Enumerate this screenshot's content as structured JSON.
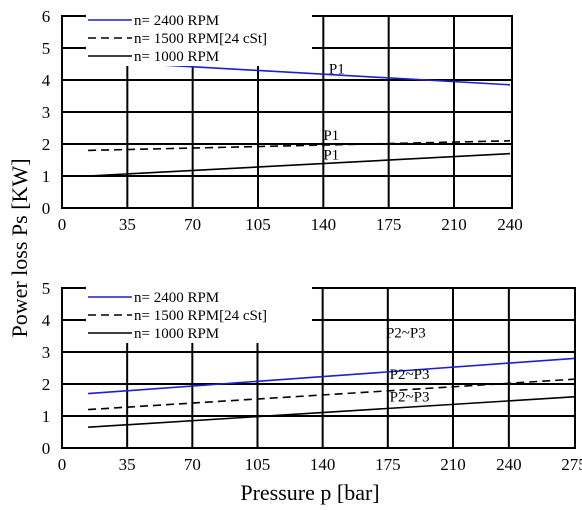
{
  "figure": {
    "ylabel": "Power  loss  Ps [KW]",
    "xlabel": "Pressure  p  [bar]"
  },
  "chart_data": [
    {
      "type": "line",
      "xlim": [
        0,
        240
      ],
      "ylim": [
        0,
        6
      ],
      "x_ticks": [
        0,
        35,
        70,
        105,
        140,
        175,
        210,
        240
      ],
      "y_ticks": [
        0,
        1,
        2,
        3,
        4,
        5,
        6
      ],
      "grid": true,
      "legend_position": "top-left",
      "series": [
        {
          "name": "n= 2400 RPM",
          "color": "#1f1fd0",
          "dash": "solid",
          "x": [
            14,
            240
          ],
          "y": [
            4.6,
            3.85
          ]
        },
        {
          "name": "n= 1500 RPM[24 cSt]",
          "color": "#000000",
          "dash": "dashed",
          "x": [
            14,
            240
          ],
          "y": [
            1.8,
            2.1
          ]
        },
        {
          "name": "n= 1000 RPM",
          "color": "#000000",
          "dash": "solid",
          "x": [
            14,
            240
          ],
          "y": [
            1.0,
            1.7
          ]
        }
      ],
      "annotations": [
        {
          "text": "P1",
          "x": 143,
          "y": 4.2
        },
        {
          "text": "P1",
          "x": 140,
          "y": 2.12
        },
        {
          "text": "P1",
          "x": 140,
          "y": 1.52
        }
      ]
    },
    {
      "type": "line",
      "xlim": [
        0,
        275
      ],
      "ylim": [
        0,
        5
      ],
      "x_ticks": [
        0,
        35,
        70,
        105,
        140,
        175,
        210,
        240,
        275
      ],
      "y_ticks": [
        0,
        1,
        2,
        3,
        4,
        5
      ],
      "grid": true,
      "legend_position": "top-left",
      "series": [
        {
          "name": "n= 2400 RPM",
          "color": "#1f1fd0",
          "dash": "solid",
          "x": [
            14,
            275
          ],
          "y": [
            1.7,
            2.8
          ]
        },
        {
          "name": "n= 1500 RPM[24 cSt]",
          "color": "#000000",
          "dash": "dashed",
          "x": [
            14,
            275
          ],
          "y": [
            1.2,
            2.15
          ]
        },
        {
          "name": "n= 1000 RPM",
          "color": "#000000",
          "dash": "solid",
          "x": [
            14,
            275
          ],
          "y": [
            0.65,
            1.6
          ]
        }
      ],
      "annotations": [
        {
          "text": "P2~P3",
          "x": 174,
          "y": 3.45
        },
        {
          "text": "P2~P3",
          "x": 176,
          "y": 2.15
        },
        {
          "text": "P2~P3",
          "x": 176,
          "y": 1.45
        }
      ]
    }
  ]
}
